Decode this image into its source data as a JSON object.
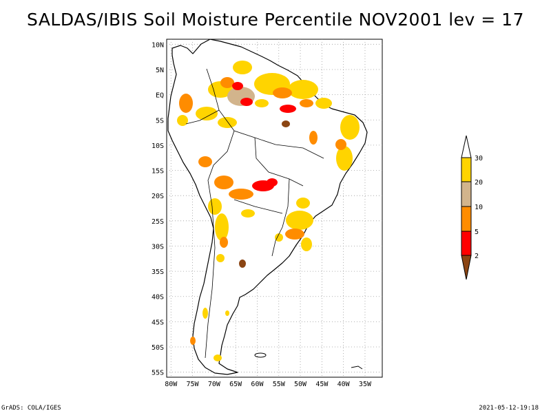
{
  "title": "SALDAS/IBIS Soil Moisture Percentile NOV2001 lev = 17",
  "map": {
    "lon_range": [
      -81,
      -31
    ],
    "lat_range": [
      -56,
      11
    ],
    "lon_ticks": [
      {
        "value": -80,
        "label": "80W"
      },
      {
        "value": -75,
        "label": "75W"
      },
      {
        "value": -70,
        "label": "70W"
      },
      {
        "value": -65,
        "label": "65W"
      },
      {
        "value": -60,
        "label": "60W"
      },
      {
        "value": -55,
        "label": "55W"
      },
      {
        "value": -50,
        "label": "50W"
      },
      {
        "value": -45,
        "label": "45W"
      },
      {
        "value": -40,
        "label": "40W"
      },
      {
        "value": -35,
        "label": "35W"
      }
    ],
    "lat_ticks": [
      {
        "value": 10,
        "label": "10N"
      },
      {
        "value": 5,
        "label": "5N"
      },
      {
        "value": 0,
        "label": "EQ"
      },
      {
        "value": -5,
        "label": "5S"
      },
      {
        "value": -10,
        "label": "10S"
      },
      {
        "value": -15,
        "label": "15S"
      },
      {
        "value": -20,
        "label": "20S"
      },
      {
        "value": -25,
        "label": "25S"
      },
      {
        "value": -30,
        "label": "30S"
      },
      {
        "value": -35,
        "label": "35S"
      },
      {
        "value": -40,
        "label": "40S"
      },
      {
        "value": -45,
        "label": "45S"
      },
      {
        "value": -50,
        "label": "50S"
      },
      {
        "value": -55,
        "label": "55S"
      }
    ]
  },
  "legend": {
    "labels": [
      "30",
      "20",
      "10",
      "5",
      "2"
    ],
    "colors": {
      "above_30": "#ffffff",
      "20_30": "#ffd400",
      "10_20": "#d2b48c",
      "5_10": "#ff8c00",
      "2_5": "#ff0000",
      "below_2": "#8b4513"
    }
  },
  "footer": {
    "left": "GrADS: COLA/IGES",
    "right": "2021-05-12-19:18"
  }
}
